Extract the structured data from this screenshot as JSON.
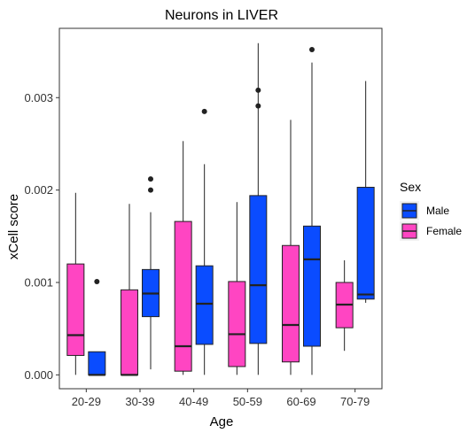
{
  "chart_data": {
    "type": "boxplot",
    "title": "Neurons in LIVER",
    "xlabel": "Age",
    "ylabel": "xCell score",
    "categories": [
      "20-29",
      "30-39",
      "40-49",
      "50-59",
      "60-69",
      "70-79"
    ],
    "ylim": [
      -0.00015,
      0.00375
    ],
    "yticks": [
      0.0,
      0.001,
      0.002,
      0.003
    ],
    "ytick_labels": [
      "0.000",
      "0.001",
      "0.002",
      "0.003"
    ],
    "grid": false,
    "legend": {
      "title": "Sex",
      "position": "right",
      "entries": [
        {
          "name": "Male",
          "color": "#0A4CFF"
        },
        {
          "name": "Female",
          "color": "#FF45C2"
        }
      ]
    },
    "series": [
      {
        "name": "Female",
        "color": "#FF45C2",
        "boxes": [
          {
            "min": 0.0,
            "q1": 0.00021,
            "median": 0.00043,
            "q3": 0.0012,
            "max": 0.00197,
            "outliers": []
          },
          {
            "min": 0.0,
            "q1": 0.0,
            "median": 0.0,
            "q3": 0.00092,
            "max": 0.00185,
            "outliers": []
          },
          {
            "min": 0.0,
            "q1": 4e-05,
            "median": 0.00031,
            "q3": 0.00166,
            "max": 0.00253,
            "outliers": []
          },
          {
            "min": 0.0,
            "q1": 9e-05,
            "median": 0.00044,
            "q3": 0.00101,
            "max": 0.00187,
            "outliers": []
          },
          {
            "min": 0.0,
            "q1": 0.00014,
            "median": 0.00054,
            "q3": 0.0014,
            "max": 0.00276,
            "outliers": []
          },
          {
            "min": 0.00026,
            "q1": 0.00051,
            "median": 0.00076,
            "q3": 0.001,
            "max": 0.00124,
            "outliers": []
          }
        ]
      },
      {
        "name": "Male",
        "color": "#0A4CFF",
        "boxes": [
          {
            "min": 0.0,
            "q1": 0.0,
            "median": 0.0,
            "q3": 0.00025,
            "max": 0.00025,
            "outliers": [
              0.00101
            ]
          },
          {
            "min": 6e-05,
            "q1": 0.00063,
            "median": 0.00088,
            "q3": 0.00114,
            "max": 0.00176,
            "outliers": [
              0.002,
              0.00212
            ]
          },
          {
            "min": 0.0,
            "q1": 0.00033,
            "median": 0.00077,
            "q3": 0.00118,
            "max": 0.00228,
            "outliers": [
              0.00285
            ]
          },
          {
            "min": 0.0,
            "q1": 0.00034,
            "median": 0.00097,
            "q3": 0.00194,
            "max": 0.00359,
            "outliers": [
              0.00291,
              0.00308
            ]
          },
          {
            "min": 0.0,
            "q1": 0.00031,
            "median": 0.00125,
            "q3": 0.00161,
            "max": 0.00338,
            "outliers": [
              0.00352
            ]
          },
          {
            "min": 0.00078,
            "q1": 0.00082,
            "median": 0.00087,
            "q3": 0.00203,
            "max": 0.00318,
            "outliers": []
          }
        ]
      }
    ]
  }
}
